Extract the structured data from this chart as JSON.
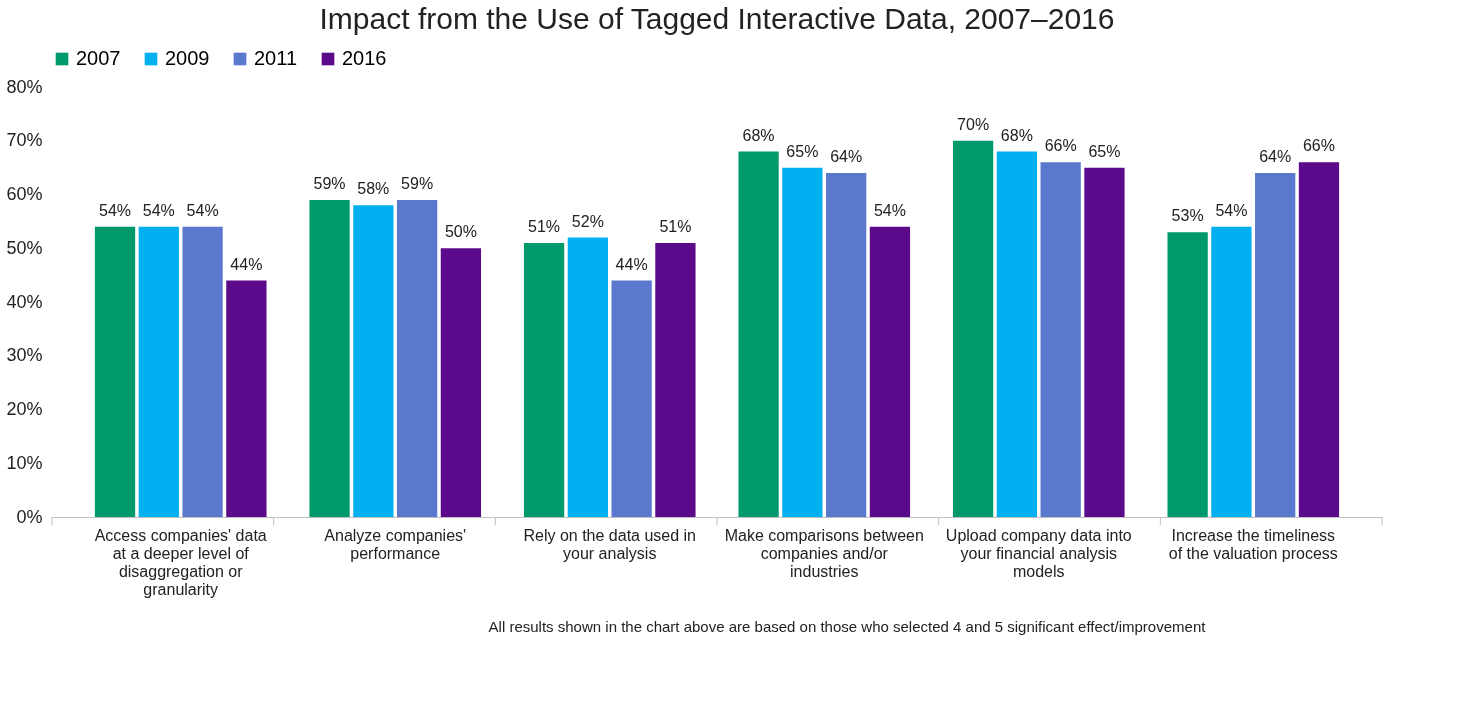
{
  "chart_data": {
    "type": "bar",
    "title": "Impact from the Use of Tagged Interactive Data, 2007–2016",
    "categories": [
      "Access companies' data at a deeper level of disaggregation or granularity",
      "Analyze companies' performance",
      "Rely on the data used in your analysis",
      "Make comparisons between companies and/or industries",
      "Upload company data into your financial analysis models",
      "Increase the timeliness of the valuation process"
    ],
    "series": [
      {
        "name": "2007",
        "color": "#00996b",
        "values": [
          54,
          59,
          51,
          68,
          70,
          53
        ],
        "value_labels": [
          "54%",
          "59%",
          "51%",
          "68%",
          "70%",
          "53%"
        ]
      },
      {
        "name": "2009",
        "color": "#00b0f0",
        "values": [
          54,
          58,
          52,
          65,
          68,
          54
        ],
        "value_labels": [
          "54%",
          "58%",
          "52%",
          "65%",
          "68%",
          "54%"
        ]
      },
      {
        "name": "2011",
        "color": "#5b78cf",
        "values": [
          54,
          59,
          44,
          64,
          66,
          64
        ],
        "value_labels": [
          "54%",
          "59%",
          "44%",
          "64%",
          "66%",
          "64%"
        ]
      },
      {
        "name": "2016",
        "color": "#5c0a8c",
        "values": [
          44,
          50,
          51,
          54,
          65,
          66
        ],
        "value_labels": [
          "44%",
          "50%",
          "51%",
          "54%",
          "65%",
          "66%"
        ]
      }
    ],
    "ylim": [
      0,
      80
    ],
    "yticks": [
      {
        "value": 0,
        "label": "0%"
      },
      {
        "value": 10,
        "label": "10%"
      },
      {
        "value": 20,
        "label": "20%"
      },
      {
        "value": 30,
        "label": "30%"
      },
      {
        "value": 40,
        "label": "40%"
      },
      {
        "value": 50,
        "label": "50%"
      },
      {
        "value": 60,
        "label": "60%"
      },
      {
        "value": 70,
        "label": "70%"
      },
      {
        "value": 80,
        "label": "80%"
      }
    ],
    "grid": false,
    "legend": "top",
    "annotations": [
      "All results shown in the chart above are based on those who selected 4 and 5 significant effect/improvement"
    ]
  }
}
